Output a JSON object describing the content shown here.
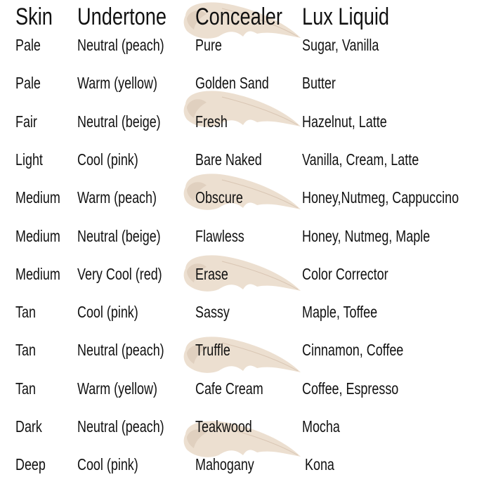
{
  "colors": {
    "swatch": "#ecdfd0",
    "swatch_shadow": "#d9c6b4",
    "text": "#111111"
  },
  "headers": [
    "Skin",
    "Undertone",
    "Concealer",
    "Lux Liquid"
  ],
  "rows": [
    [
      "Pale",
      "Neutral (peach)",
      "Pure",
      "Sugar, Vanilla"
    ],
    [
      "Pale",
      "Warm (yellow)",
      "Golden Sand",
      "Butter"
    ],
    [
      "Fair",
      "Neutral (beige)",
      "Fresh",
      "Hazelnut, Latte"
    ],
    [
      "Light",
      "Cool (pink)",
      "Bare Naked",
      "Vanilla, Cream, Latte"
    ],
    [
      "Medium",
      "Warm (peach)",
      "Obscure",
      "Honey,Nutmeg, Cappuccino"
    ],
    [
      "Medium",
      "Neutral (beige)",
      "Flawless",
      "Honey, Nutmeg, Maple"
    ],
    [
      "Medium",
      "Very Cool (red)",
      "Erase",
      "Color Corrector"
    ],
    [
      "Tan",
      "Cool (pink)",
      "Sassy",
      "Maple, Toffee"
    ],
    [
      "Tan",
      "Neutral (peach)",
      "Truffle",
      "Cinnamon, Coffee"
    ],
    [
      "Tan",
      "Warm (yellow)",
      "Cafe Cream",
      "Coffee, Espresso"
    ],
    [
      "Dark",
      "Neutral (peach)",
      "Teakwood",
      "Mocha"
    ],
    [
      "Deep",
      "Cool (pink)",
      "Mahogany",
      "Kona"
    ]
  ]
}
